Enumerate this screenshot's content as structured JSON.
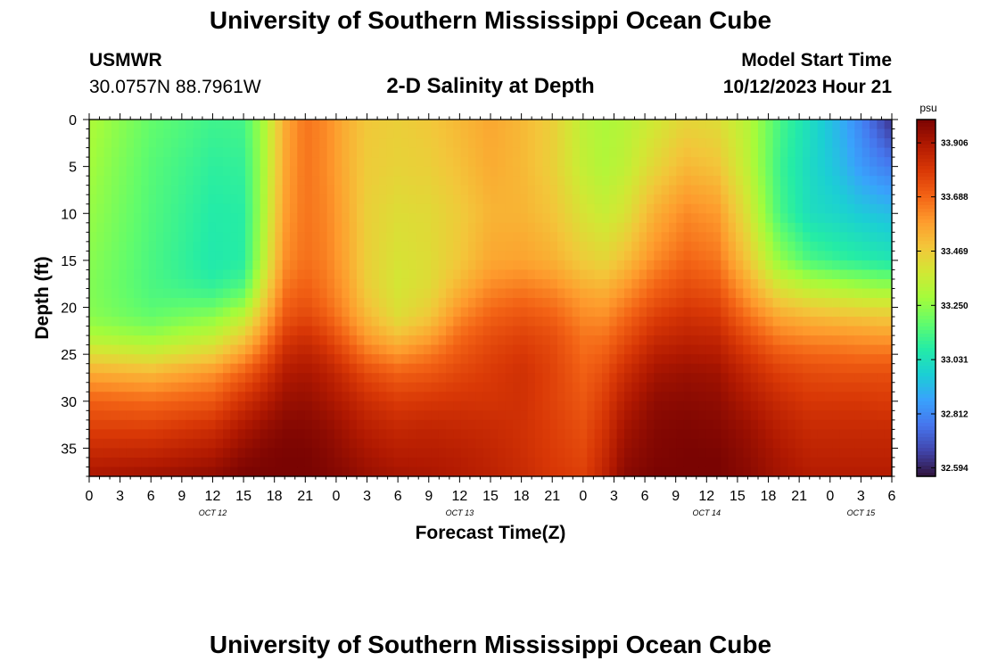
{
  "header": {
    "title": "University of Southern Mississippi Ocean Cube",
    "station_id": "USMWR",
    "coordinates": "30.0757N  88.7961W",
    "plot_title": "2-D Salinity at Depth",
    "model_start_label": "Model Start Time",
    "model_start_value": "10/12/2023 Hour 21"
  },
  "footer": {
    "title": "University of Southern Mississippi Ocean Cube"
  },
  "chart_data": {
    "type": "heatmap",
    "title": "2-D Salinity at Depth",
    "xlabel": "Forecast Time(Z)",
    "ylabel": "Depth (ft)",
    "x_ticks": [
      "0",
      "3",
      "6",
      "9",
      "12",
      "15",
      "18",
      "21",
      "0",
      "3",
      "6",
      "9",
      "12",
      "15",
      "18",
      "21",
      "0",
      "3",
      "6",
      "9",
      "12",
      "15",
      "18",
      "21",
      "0",
      "3",
      "6"
    ],
    "x_range_hours": [
      0,
      78
    ],
    "day_labels": [
      {
        "label": "OCT 12",
        "hour": 12
      },
      {
        "label": "OCT 13",
        "hour": 36
      },
      {
        "label": "OCT 14",
        "hour": 60
      },
      {
        "label": "OCT 15",
        "hour": 75
      }
    ],
    "y_ticks": [
      0,
      5,
      10,
      15,
      20,
      25,
      30,
      35
    ],
    "y_range_ft": [
      0,
      38
    ],
    "colorbar": {
      "unit": "psu",
      "range": [
        32.56,
        34.0
      ],
      "ticks": [
        "33.906",
        "33.688",
        "33.469",
        "33.250",
        "33.031",
        "32.812",
        "32.594"
      ],
      "colors": [
        "#30123b",
        "#4145ab",
        "#4675ed",
        "#39a2fc",
        "#1bcfd4",
        "#24eca6",
        "#61fc6c",
        "#a4fc3b",
        "#d1e834",
        "#f3c63a",
        "#fe9b2d",
        "#f36315",
        "#d93806",
        "#b11901",
        "#7a0402"
      ]
    },
    "hours": [
      0,
      6,
      12,
      15,
      17,
      19,
      21,
      23,
      25,
      27,
      30,
      33,
      36,
      39,
      42,
      45,
      48,
      50,
      52,
      55,
      58,
      61,
      64,
      67,
      70,
      73,
      75,
      77,
      78
    ],
    "depths": [
      0,
      5,
      10,
      15,
      17,
      19,
      21,
      23,
      25,
      27,
      30,
      33,
      36,
      38
    ],
    "values": [
      [
        33.3,
        33.28,
        33.26,
        33.24,
        33.23,
        33.23,
        33.24,
        33.3,
        33.42,
        33.55,
        33.7,
        33.78,
        33.86,
        33.91
      ],
      [
        33.18,
        33.16,
        33.15,
        33.14,
        33.14,
        33.15,
        33.18,
        33.26,
        33.38,
        33.52,
        33.68,
        33.78,
        33.87,
        33.93
      ],
      [
        33.12,
        33.09,
        33.07,
        33.06,
        33.08,
        33.14,
        33.24,
        33.34,
        33.46,
        33.6,
        33.72,
        33.83,
        33.91,
        33.96
      ],
      [
        33.13,
        33.1,
        33.08,
        33.08,
        33.12,
        33.21,
        33.34,
        33.46,
        33.58,
        33.7,
        33.82,
        33.91,
        33.97,
        34.0
      ],
      [
        33.3,
        33.3,
        33.31,
        33.34,
        33.39,
        33.45,
        33.53,
        33.61,
        33.7,
        33.79,
        33.88,
        33.95,
        33.99,
        34.0
      ],
      [
        33.55,
        33.56,
        33.58,
        33.61,
        33.64,
        33.68,
        33.72,
        33.78,
        33.84,
        33.89,
        33.94,
        33.98,
        34.0,
        34.0
      ],
      [
        33.66,
        33.66,
        33.66,
        33.67,
        33.69,
        33.72,
        33.76,
        33.82,
        33.87,
        33.91,
        33.95,
        33.98,
        34.0,
        34.0
      ],
      [
        33.62,
        33.62,
        33.63,
        33.64,
        33.65,
        33.67,
        33.71,
        33.77,
        33.83,
        33.88,
        33.92,
        33.96,
        33.98,
        33.99
      ],
      [
        33.54,
        33.54,
        33.55,
        33.56,
        33.57,
        33.59,
        33.62,
        33.68,
        33.75,
        33.82,
        33.88,
        33.92,
        33.95,
        33.97
      ],
      [
        33.48,
        33.47,
        33.46,
        33.46,
        33.46,
        33.48,
        33.52,
        33.58,
        33.66,
        33.75,
        33.83,
        33.88,
        33.92,
        33.94
      ],
      [
        33.46,
        33.45,
        33.42,
        33.4,
        33.39,
        33.4,
        33.42,
        33.5,
        33.6,
        33.7,
        33.79,
        33.85,
        33.89,
        33.92
      ],
      [
        33.48,
        33.46,
        33.43,
        33.42,
        33.42,
        33.44,
        33.48,
        33.56,
        33.65,
        33.72,
        33.8,
        33.86,
        33.89,
        33.91
      ],
      [
        33.52,
        33.5,
        33.47,
        33.48,
        33.51,
        33.56,
        33.62,
        33.68,
        33.72,
        33.76,
        33.81,
        33.85,
        33.88,
        33.89
      ],
      [
        33.56,
        33.55,
        33.53,
        33.56,
        33.6,
        33.65,
        33.7,
        33.74,
        33.77,
        33.79,
        33.81,
        33.84,
        33.86,
        33.87
      ],
      [
        33.52,
        33.52,
        33.53,
        33.57,
        33.62,
        33.68,
        33.73,
        33.77,
        33.8,
        33.82,
        33.82,
        33.82,
        33.83,
        33.84
      ],
      [
        33.46,
        33.46,
        33.49,
        33.54,
        33.59,
        33.65,
        33.7,
        33.74,
        33.76,
        33.77,
        33.77,
        33.78,
        33.79,
        33.8
      ],
      [
        33.34,
        33.35,
        33.4,
        33.47,
        33.52,
        33.58,
        33.62,
        33.66,
        33.68,
        33.7,
        33.72,
        33.74,
        33.76,
        33.78
      ],
      [
        33.3,
        33.31,
        33.36,
        33.44,
        33.5,
        33.56,
        33.61,
        33.66,
        33.7,
        33.74,
        33.78,
        33.81,
        33.84,
        33.86
      ],
      [
        33.32,
        33.34,
        33.4,
        33.5,
        33.56,
        33.62,
        33.68,
        33.73,
        33.78,
        33.83,
        33.88,
        33.92,
        33.95,
        33.97
      ],
      [
        33.38,
        33.44,
        33.54,
        33.62,
        33.67,
        33.72,
        33.78,
        33.83,
        33.88,
        33.92,
        33.96,
        33.98,
        33.99,
        34.0
      ],
      [
        33.44,
        33.52,
        33.62,
        33.69,
        33.73,
        33.77,
        33.82,
        33.86,
        33.9,
        33.94,
        33.97,
        33.99,
        34.0,
        34.0
      ],
      [
        33.42,
        33.49,
        33.59,
        33.66,
        33.7,
        33.75,
        33.8,
        33.85,
        33.89,
        33.93,
        33.96,
        33.98,
        34.0,
        34.0
      ],
      [
        33.32,
        33.34,
        33.4,
        33.48,
        33.54,
        33.6,
        33.67,
        33.74,
        33.8,
        33.85,
        33.9,
        33.94,
        33.96,
        33.97
      ],
      [
        33.14,
        33.12,
        33.14,
        33.26,
        33.36,
        33.46,
        33.56,
        33.64,
        33.72,
        33.78,
        33.84,
        33.88,
        33.91,
        33.92
      ],
      [
        33.02,
        33.01,
        33.02,
        33.14,
        33.28,
        33.4,
        33.52,
        33.61,
        33.69,
        33.75,
        33.8,
        33.84,
        33.87,
        33.89
      ],
      [
        32.9,
        32.93,
        32.99,
        33.1,
        33.24,
        33.38,
        33.5,
        33.6,
        33.68,
        33.74,
        33.8,
        33.84,
        33.87,
        33.89
      ],
      [
        32.8,
        32.85,
        32.96,
        33.08,
        33.22,
        33.36,
        33.49,
        33.59,
        33.67,
        33.74,
        33.8,
        33.84,
        33.87,
        33.89
      ],
      [
        32.68,
        32.8,
        32.94,
        33.06,
        33.2,
        33.35,
        33.48,
        33.58,
        33.67,
        33.74,
        33.79,
        33.84,
        33.87,
        33.89
      ],
      [
        32.62,
        32.78,
        32.93,
        33.05,
        33.2,
        33.35,
        33.48,
        33.58,
        33.67,
        33.74,
        33.79,
        33.84,
        33.87,
        33.89
      ]
    ]
  }
}
